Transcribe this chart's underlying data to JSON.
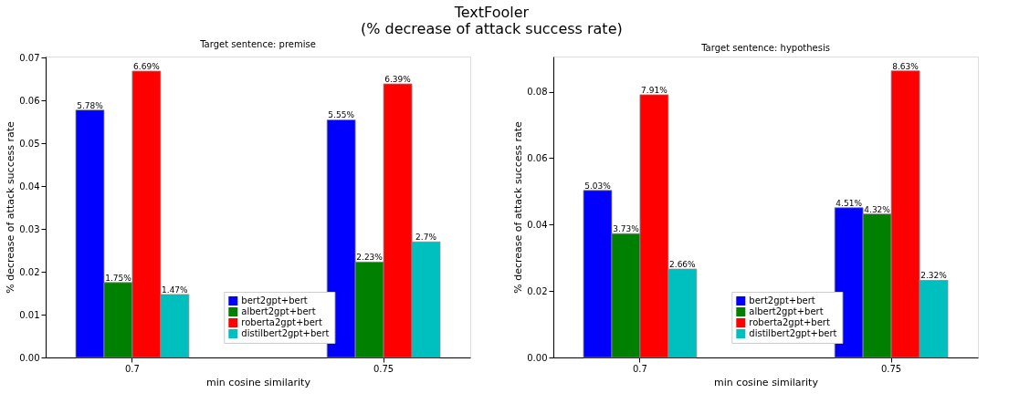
{
  "chart_data": [
    {
      "type": "bar",
      "title": "Target sentence: premise",
      "annotations": [
        "TextFooler\n(% decrease of attack success rate)"
      ],
      "xlabel": "min cosine similarity",
      "ylabel": "% decrease of attack success rate",
      "categories": [
        "0.7",
        "0.75"
      ],
      "series": [
        {
          "name": "bert2gpt+bert",
          "color": "#0000ff",
          "values": [
            0.0578,
            0.0555
          ],
          "value_labels": [
            "5.78%",
            "5.55%"
          ]
        },
        {
          "name": "albert2gpt+bert",
          "color": "#008000",
          "values": [
            0.0175,
            0.0223
          ],
          "value_labels": [
            "1.75%",
            "2.23%"
          ]
        },
        {
          "name": "roberta2gpt+bert",
          "color": "#ff0000",
          "values": [
            0.0669,
            0.0639
          ],
          "value_labels": [
            "6.69%",
            "6.39%"
          ]
        },
        {
          "name": "distilbert2gpt+bert",
          "color": "#00bfbf",
          "values": [
            0.0147,
            0.027
          ],
          "value_labels": [
            "1.47%",
            "2.7%"
          ]
        }
      ],
      "ylim": [
        0,
        0.0703
      ],
      "yticks": [
        {
          "value": 0,
          "label": "0.00"
        },
        {
          "value": 0.01,
          "label": "0.01"
        },
        {
          "value": 0.02,
          "label": "0.02"
        },
        {
          "value": 0.03,
          "label": "0.03"
        },
        {
          "value": 0.04,
          "label": "0.04"
        },
        {
          "value": 0.05,
          "label": "0.05"
        },
        {
          "value": 0.06,
          "label": "0.06"
        },
        {
          "value": 0.07,
          "label": "0.07"
        }
      ],
      "grid": false,
      "legend": "bottom"
    },
    {
      "type": "bar",
      "title": "Target sentence: hypothesis",
      "xlabel": "min cosine similarity",
      "ylabel": "% decrease of attack success rate",
      "categories": [
        "0.7",
        "0.75"
      ],
      "series": [
        {
          "name": "bert2gpt+bert",
          "color": "#0000ff",
          "values": [
            0.0503,
            0.0451
          ],
          "value_labels": [
            "5.03%",
            "4.51%"
          ]
        },
        {
          "name": "albert2gpt+bert",
          "color": "#008000",
          "values": [
            0.0373,
            0.0432
          ],
          "value_labels": [
            "3.73%",
            "4.32%"
          ]
        },
        {
          "name": "roberta2gpt+bert",
          "color": "#ff0000",
          "values": [
            0.0791,
            0.0863
          ],
          "value_labels": [
            "7.91%",
            "8.63%"
          ]
        },
        {
          "name": "distilbert2gpt+bert",
          "color": "#00bfbf",
          "values": [
            0.0266,
            0.0232
          ],
          "value_labels": [
            "2.66%",
            "2.32%"
          ]
        }
      ],
      "ylim": [
        0,
        0.0906
      ],
      "yticks": [
        {
          "value": 0,
          "label": "0.00"
        },
        {
          "value": 0.02,
          "label": "0.02"
        },
        {
          "value": 0.04,
          "label": "0.04"
        },
        {
          "value": 0.06,
          "label": "0.06"
        },
        {
          "value": 0.08,
          "label": "0.08"
        }
      ],
      "grid": false,
      "legend": "bottom"
    }
  ]
}
